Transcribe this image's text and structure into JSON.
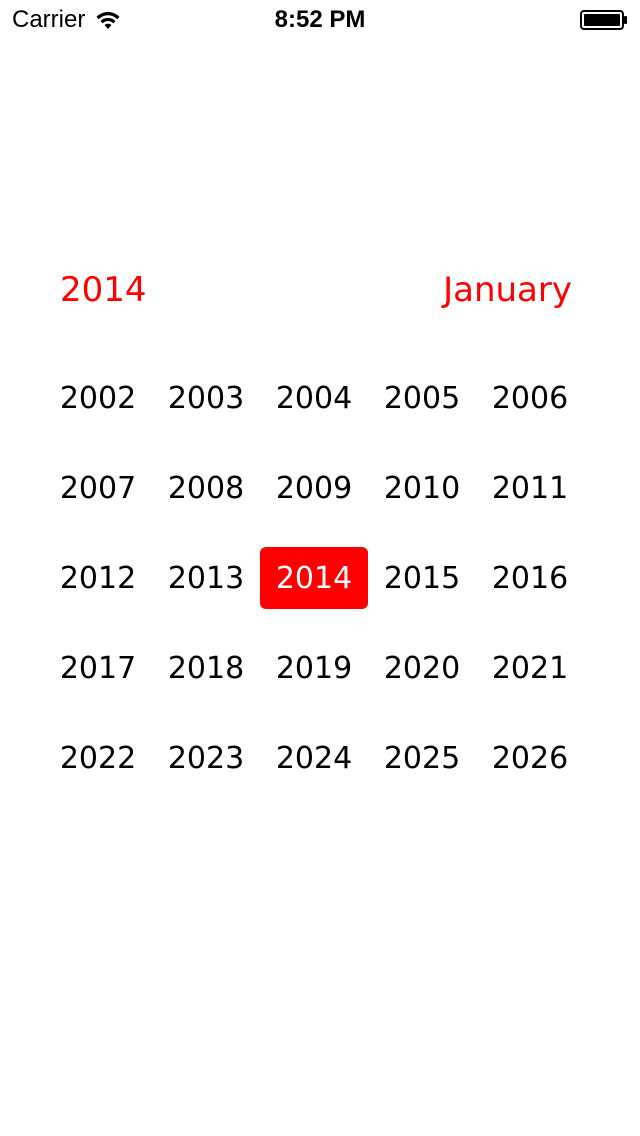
{
  "status_bar": {
    "carrier": "Carrier",
    "time": "8:52 PM",
    "wifi_icon": "wifi-icon",
    "battery_icon": "battery-icon"
  },
  "header": {
    "year": "2014",
    "month": "January"
  },
  "colors": {
    "accent": "#ff0000",
    "text": "#000000",
    "background": "#ffffff"
  },
  "years": {
    "items": [
      "2002",
      "2003",
      "2004",
      "2005",
      "2006",
      "2007",
      "2008",
      "2009",
      "2010",
      "2011",
      "2012",
      "2013",
      "2014",
      "2015",
      "2016",
      "2017",
      "2018",
      "2019",
      "2020",
      "2021",
      "2022",
      "2023",
      "2024",
      "2025",
      "2026"
    ],
    "selected": "2014"
  }
}
